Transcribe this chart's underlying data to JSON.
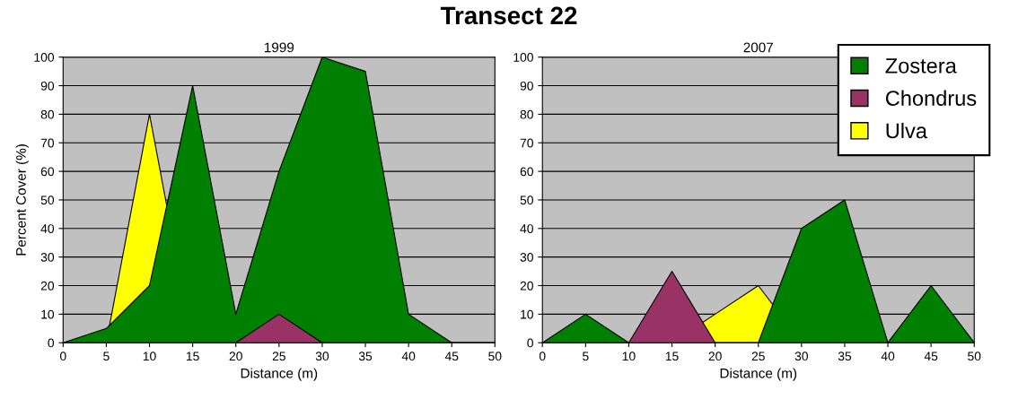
{
  "chart_data": [
    {
      "type": "area",
      "title": "1999",
      "annotations": [
        "Transect 22"
      ],
      "xlabel": "Distance (m)",
      "ylabel": "Percent Cover (%)",
      "xlim": [
        0,
        50
      ],
      "xticks": [
        0,
        5,
        10,
        15,
        20,
        25,
        30,
        35,
        40,
        45,
        50
      ],
      "ylim": [
        0,
        100
      ],
      "yticks": [
        0,
        10,
        20,
        30,
        40,
        50,
        60,
        70,
        80,
        90,
        100
      ],
      "grid": "y",
      "series": [
        {
          "color": "#008000",
          "x": [
            0,
            5,
            10,
            15,
            20,
            25,
            30,
            35,
            40,
            45,
            50
          ],
          "values": [
            0,
            5,
            20,
            90,
            10,
            60,
            100,
            95,
            10,
            0,
            0
          ]
        },
        {
          "color": "#993366",
          "x": [
            0,
            5,
            10,
            15,
            20,
            25,
            30,
            35,
            40,
            45,
            50
          ],
          "values": [
            0,
            0,
            0,
            0,
            0,
            10,
            0,
            0,
            0,
            0,
            0
          ]
        },
        {
          "color": "#ffff00",
          "x": [
            0,
            5,
            10,
            15,
            20,
            25,
            30,
            35,
            40,
            45,
            50
          ],
          "values": [
            0,
            0,
            80,
            0,
            0,
            0,
            0,
            0,
            0,
            0,
            0
          ]
        }
      ]
    },
    {
      "type": "area",
      "title": "2007",
      "xlabel": "Distance (m)",
      "xlim": [
        0,
        50
      ],
      "xticks": [
        0,
        5,
        10,
        15,
        20,
        25,
        30,
        35,
        40,
        45,
        50
      ],
      "ylim": [
        0,
        100
      ],
      "yticks": [
        0,
        10,
        20,
        30,
        40,
        50,
        60,
        70,
        80,
        90,
        100
      ],
      "grid": "y",
      "legend": "top right",
      "series": [
        {
          "name": "Zostera",
          "color": "#008000",
          "x": [
            0,
            5,
            10,
            15,
            20,
            25,
            30,
            35,
            40,
            45,
            50
          ],
          "values": [
            0,
            10,
            0,
            0,
            0,
            0,
            40,
            50,
            0,
            20,
            0
          ]
        },
        {
          "name": "Chondrus",
          "color": "#993366",
          "x": [
            0,
            5,
            10,
            15,
            20,
            25,
            30,
            35,
            40,
            45,
            50
          ],
          "values": [
            0,
            0,
            0,
            25,
            0,
            0,
            0,
            0,
            0,
            0,
            0
          ]
        },
        {
          "name": "Ulva",
          "color": "#ffff00",
          "x": [
            0,
            5,
            10,
            15,
            20,
            25,
            30,
            35,
            40,
            45,
            50
          ],
          "values": [
            0,
            0,
            0,
            0,
            10,
            20,
            0,
            0,
            0,
            0,
            0
          ]
        }
      ]
    }
  ]
}
